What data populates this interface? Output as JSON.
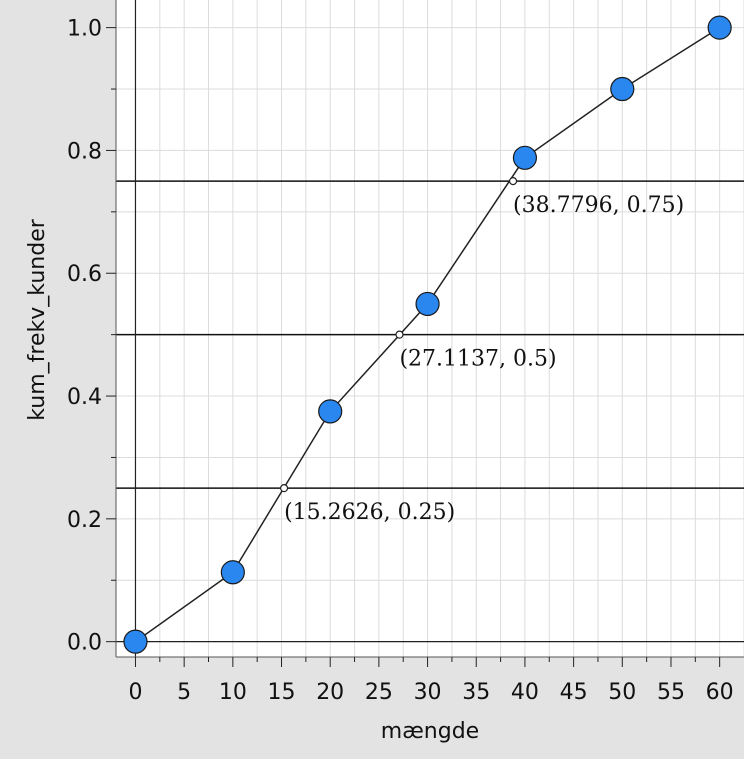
{
  "chart_data": {
    "type": "scatter",
    "xlabel": "mængde",
    "ylabel": "kum_frekv_kunder",
    "xlim": [
      -2,
      62.5
    ],
    "ylim": [
      -0.025,
      1.045
    ],
    "x_ticks": [
      0,
      5,
      10,
      15,
      20,
      25,
      30,
      35,
      40,
      45,
      50,
      55,
      60
    ],
    "x_tick_labels": [
      "0",
      "5",
      "10",
      "15",
      "20",
      "25",
      "30",
      "35",
      "40",
      "45",
      "50",
      "55",
      "60"
    ],
    "y_ticks": [
      0,
      0.2,
      0.4,
      0.6,
      0.8,
      1.0
    ],
    "y_tick_labels": [
      "0.0",
      "0.2",
      "0.4",
      "0.6",
      "0.8",
      "1.0"
    ],
    "grid": true,
    "point_color": "#2b87f0",
    "series": [
      {
        "x": [
          0,
          10,
          20,
          30,
          40,
          50,
          60
        ],
        "y": [
          0,
          0.113,
          0.375,
          0.55,
          0.788,
          0.9,
          1.0
        ]
      }
    ],
    "reference_lines": [
      0.25,
      0.5,
      0.75
    ],
    "annotations": [
      {
        "x": 15.2626,
        "y": 0.25,
        "label": "(15.2626, 0.25)"
      },
      {
        "x": 27.1137,
        "y": 0.5,
        "label": "(27.1137, 0.5)"
      },
      {
        "x": 38.7796,
        "y": 0.75,
        "label": "(38.7796, 0.75)"
      }
    ]
  }
}
